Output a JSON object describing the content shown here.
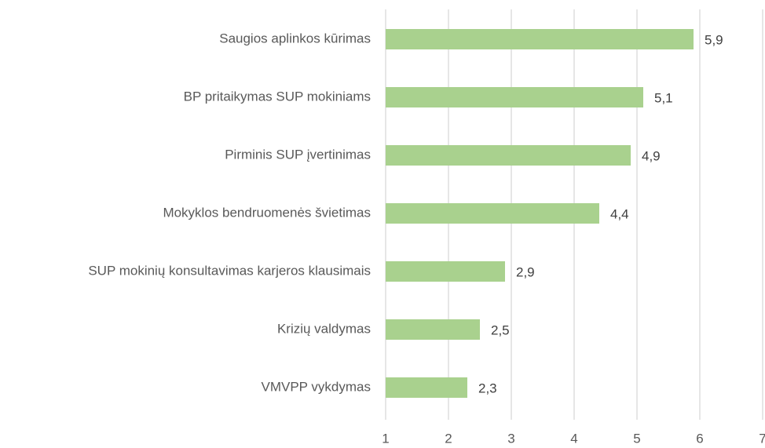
{
  "chart_data": {
    "type": "bar",
    "orientation": "horizontal",
    "categories": [
      "Saugios aplinkos kūrimas",
      "BP pritaikymas SUP mokiniams",
      "Pirminis SUP įvertinimas",
      "Mokyklos bendruomenės švietimas",
      "SUP mokinių konsultavimas karjeros klausimais",
      "Krizių valdymas",
      "VMVPP vykdymas"
    ],
    "values": [
      5.9,
      5.1,
      4.9,
      4.4,
      2.9,
      2.5,
      2.3
    ],
    "value_labels": [
      "5,9",
      "5,1",
      "4,9",
      "4,4",
      "2,9",
      "2,5",
      "2,3"
    ],
    "color": "#a9d18e",
    "xlim": [
      1,
      7
    ],
    "xticks": [
      1,
      2,
      3,
      4,
      5,
      6,
      7
    ],
    "grid": true
  }
}
